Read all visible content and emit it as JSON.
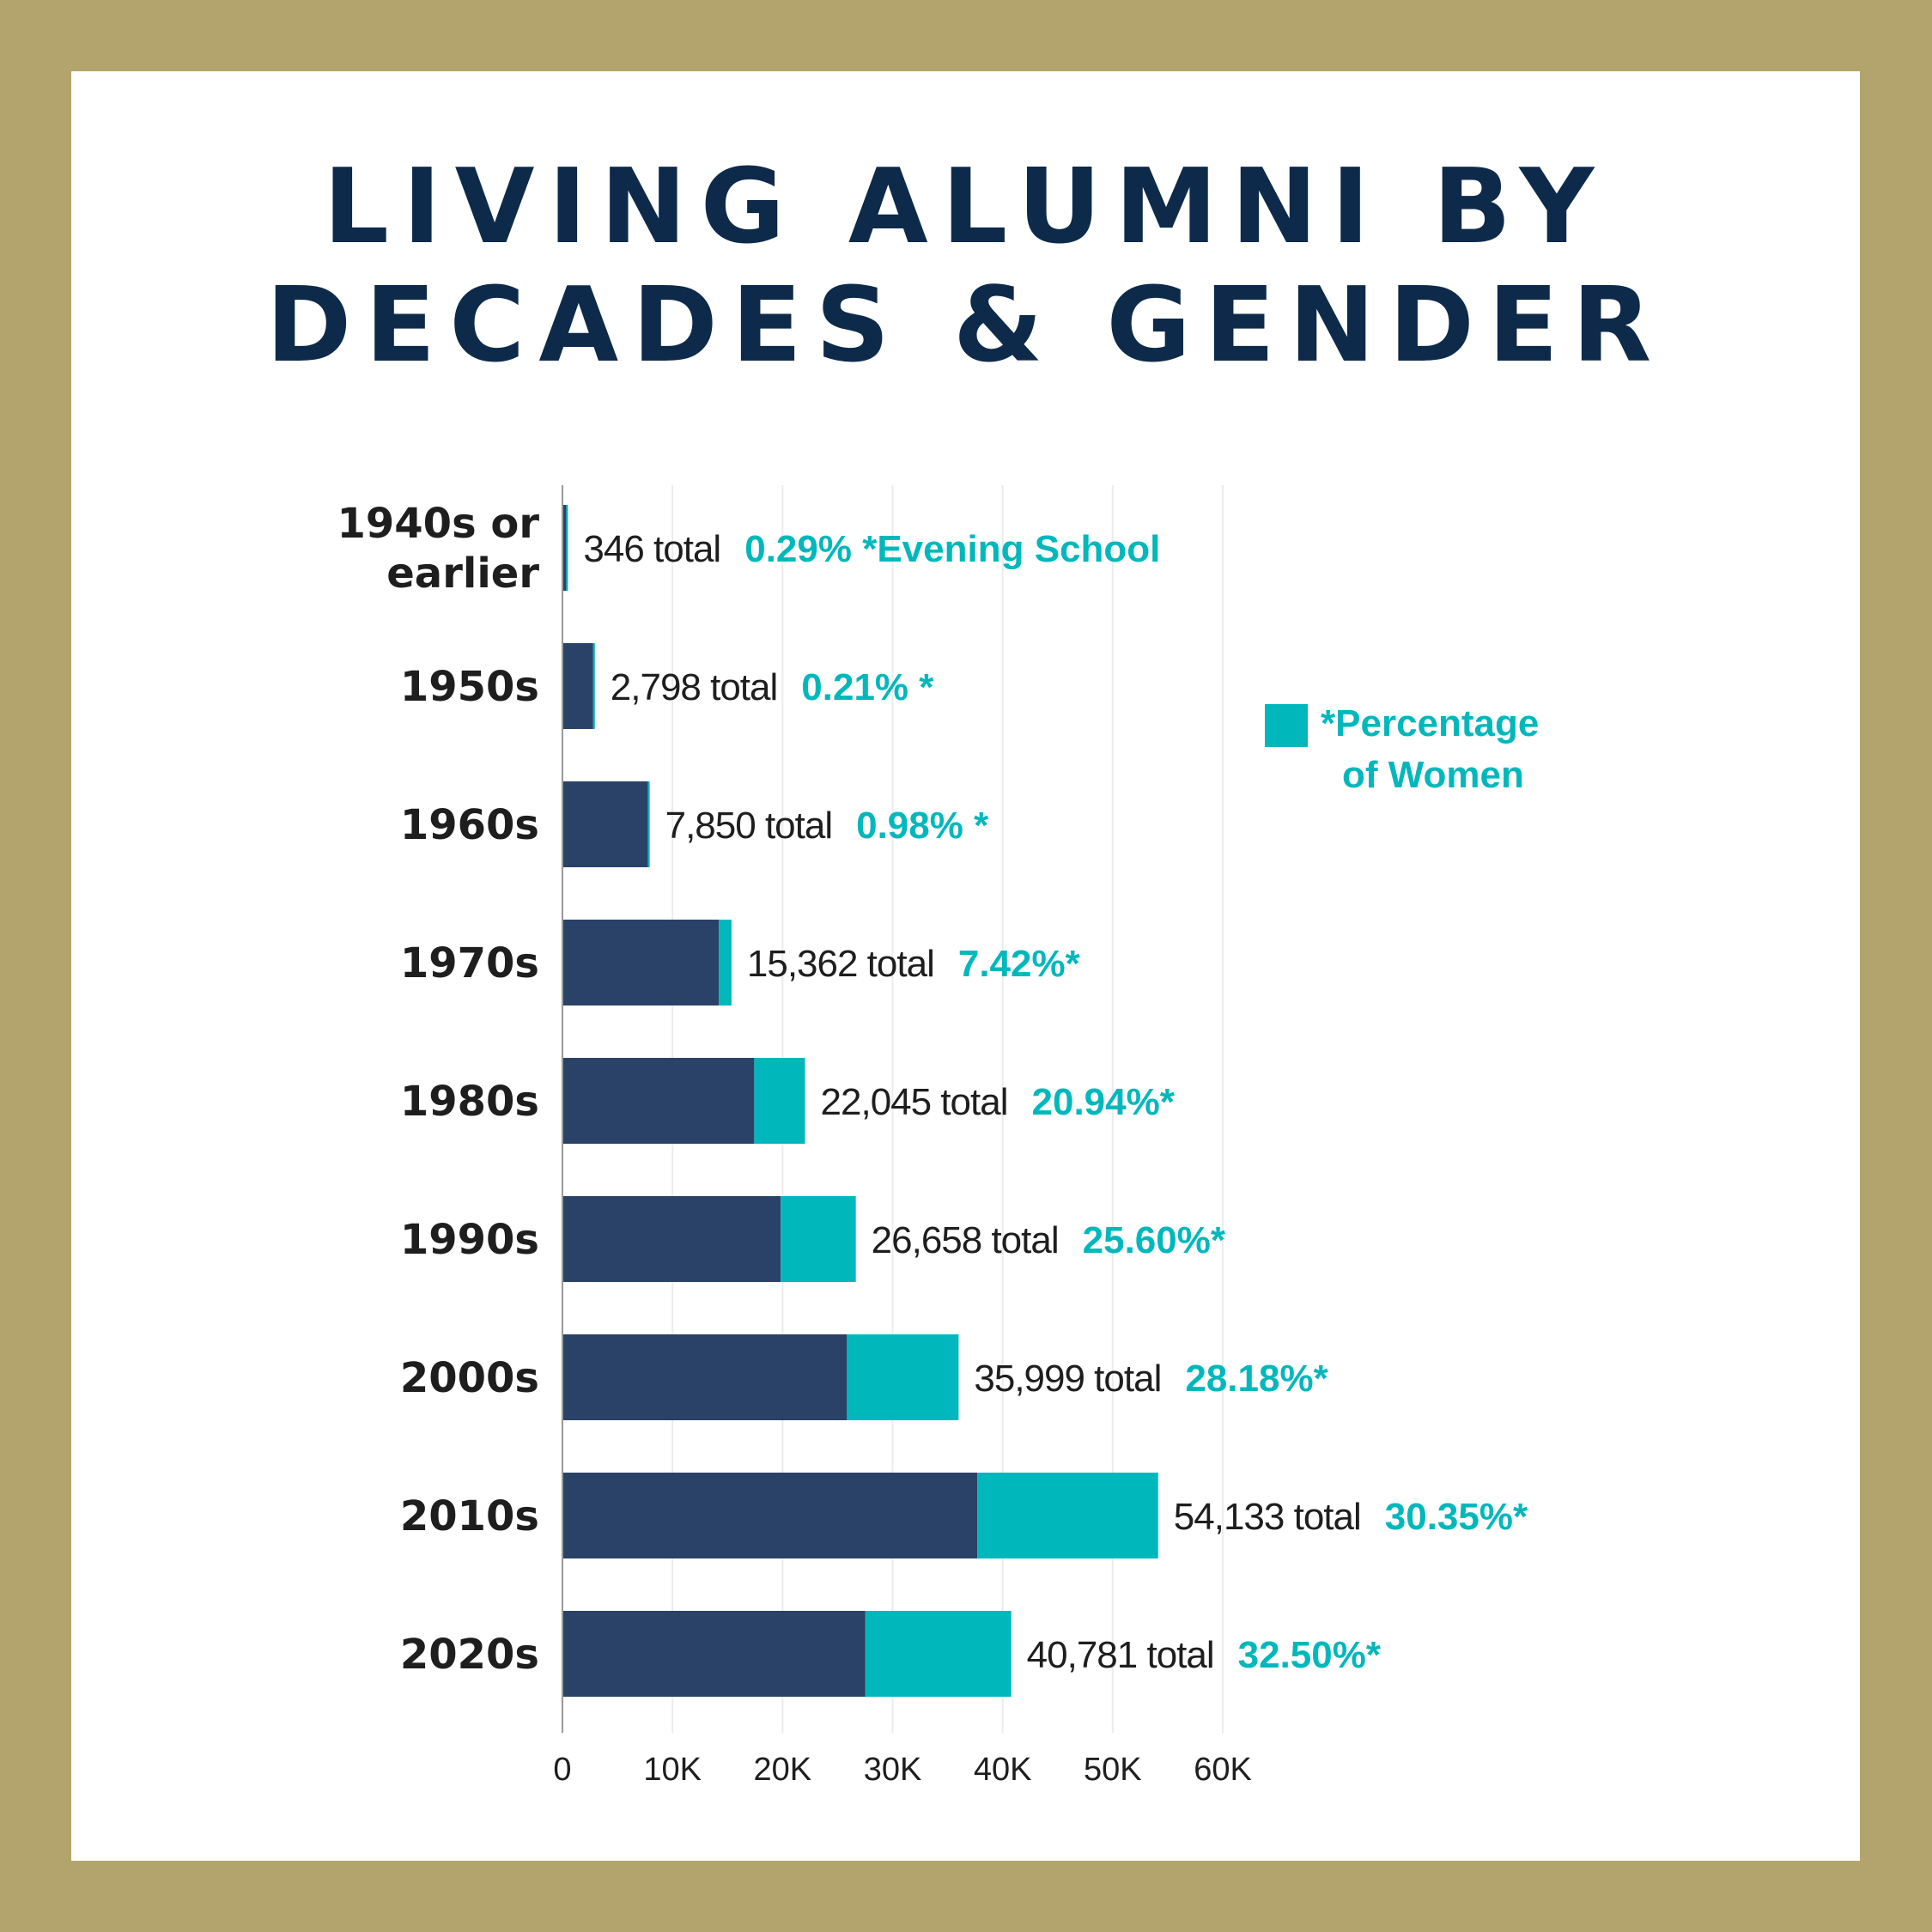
{
  "title_lines": [
    "LIVING ALUMNI BY",
    "DECADES & GENDER"
  ],
  "colors": {
    "frame": "#b2a46c",
    "men": "#2b4268",
    "women": "#00b8bc",
    "title": "#0e2a4b",
    "text": "#1e1e1e",
    "grid": "#ececec",
    "axis": "#9a9a9a"
  },
  "chart_data": {
    "type": "bar",
    "orientation": "horizontal",
    "stacked": true,
    "title": "LIVING ALUMNI BY DECADES & GENDER",
    "xlim": [
      0,
      60000
    ],
    "x_ticks": [
      0,
      10000,
      20000,
      30000,
      40000,
      50000,
      60000
    ],
    "x_tick_labels": [
      "0",
      "10K",
      "20K",
      "30K",
      "40K",
      "50K",
      "60K"
    ],
    "grid": "vertical",
    "legend": {
      "position": "right",
      "marker": "*Percentage",
      "label_lines": [
        "*Percentage",
        "of Women"
      ]
    },
    "categories": [
      {
        "label_lines": [
          "1940s or",
          "earlier"
        ],
        "total": 346,
        "total_label": "346 total",
        "pct_label": "0.29% *Evening School",
        "women": 1
      },
      {
        "label_lines": [
          "1950s"
        ],
        "total": 2798,
        "total_label": "2,798 total",
        "pct_label": "0.21% *",
        "women": 6
      },
      {
        "label_lines": [
          "1960s"
        ],
        "total": 7850,
        "total_label": "7,850 total",
        "pct_label": "0.98% *",
        "women": 77
      },
      {
        "label_lines": [
          "1970s"
        ],
        "total": 15362,
        "total_label": "15,362 total",
        "pct_label": "7.42%*",
        "women": 1140
      },
      {
        "label_lines": [
          "1980s"
        ],
        "total": 22045,
        "total_label": "22,045 total",
        "pct_label": "20.94%*",
        "women": 4616
      },
      {
        "label_lines": [
          "1990s"
        ],
        "total": 26658,
        "total_label": "26,658 total",
        "pct_label": "25.60%*",
        "women": 6824
      },
      {
        "label_lines": [
          "2000s"
        ],
        "total": 35999,
        "total_label": "35,999 total",
        "pct_label": "28.18%*",
        "women": 10145
      },
      {
        "label_lines": [
          "2010s"
        ],
        "total": 54133,
        "total_label": "54,133 total",
        "pct_label": "30.35%*",
        "women": 16429
      },
      {
        "label_lines": [
          "2020s"
        ],
        "total": 40781,
        "total_label": "40,781 total",
        "pct_label": "32.50%*",
        "women": 13254
      }
    ]
  }
}
